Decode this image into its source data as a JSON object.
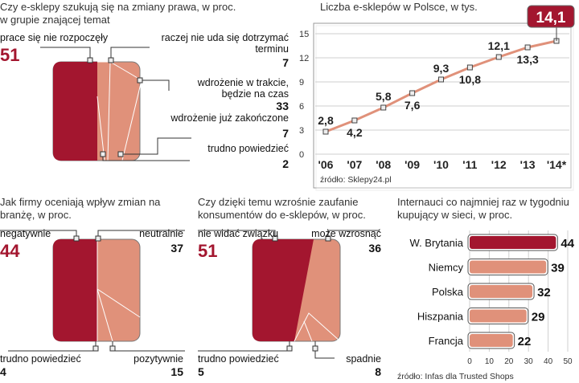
{
  "chart_data": [
    {
      "type": "pie",
      "title": "Czy e-sklepy szukują się na zmiany prawa, w proc. w grupie znającej temat",
      "categories": [
        "prace się nie rozpoczęły",
        "raczej nie uda się dotrzymać terminu",
        "wdrożenie w trakcie, będzie na czas",
        "wdrożenie już zakończone",
        "trudno powiedzieć"
      ],
      "values": [
        51,
        7,
        33,
        7,
        2
      ],
      "labels": [
        "51",
        "7",
        "33",
        "7",
        "2"
      ]
    },
    {
      "type": "line",
      "title": "Liczba e-sklepów w Polsce, w tys.",
      "x": [
        "'06",
        "'07",
        "'08",
        "'09",
        "'10",
        "'11",
        "'12",
        "'13",
        "'14*"
      ],
      "values": [
        2.8,
        4.2,
        5.8,
        7.6,
        9.3,
        10.8,
        12.1,
        13.3,
        14.1
      ],
      "labels": [
        "2,8",
        "4,2",
        "5,8",
        "7,6",
        "9,3",
        "10,8",
        "12,1",
        "13,3",
        "14,1"
      ],
      "yticks": [
        "0",
        "3",
        "6",
        "9",
        "12",
        "15"
      ],
      "ylim": [
        0,
        15
      ],
      "grid": true,
      "source": "źródło: Sklepy24.pl"
    },
    {
      "type": "pie",
      "title": "Jak firmy oceniają wpływ zmian na branżę, w proc.",
      "categories": [
        "negatywnie",
        "neutralnie",
        "pozytywnie",
        "trudno powiedzieć"
      ],
      "values": [
        44,
        37,
        15,
        4
      ],
      "labels": [
        "44",
        "37",
        "15",
        "4"
      ]
    },
    {
      "type": "pie",
      "title": "Czy dzięki temu wzrośnie zaufanie konsumentów do e-sklepów, w proc.",
      "categories": [
        "nie widać związku",
        "może wzrosnąć",
        "spadnie",
        "trudno powiedzieć"
      ],
      "values": [
        51,
        36,
        8,
        5
      ],
      "labels": [
        "51",
        "36",
        "8",
        "5"
      ]
    },
    {
      "type": "bar",
      "title": "Internauci co najmniej raz w tygodniu kupujący w sieci, w proc.",
      "categories": [
        "W. Brytania",
        "Niemcy",
        "Polska",
        "Hiszpania",
        "Francja"
      ],
      "values": [
        44,
        39,
        32,
        29,
        22
      ],
      "xticks": [
        "0",
        "10",
        "20",
        "30",
        "40",
        "50"
      ],
      "xlim": [
        0,
        50
      ],
      "source": "źródło: Infas dla Trusted Shops"
    }
  ],
  "colors": {
    "dark": "#a3162f",
    "light": "#e0917a",
    "grid": "#cfcfcf"
  }
}
